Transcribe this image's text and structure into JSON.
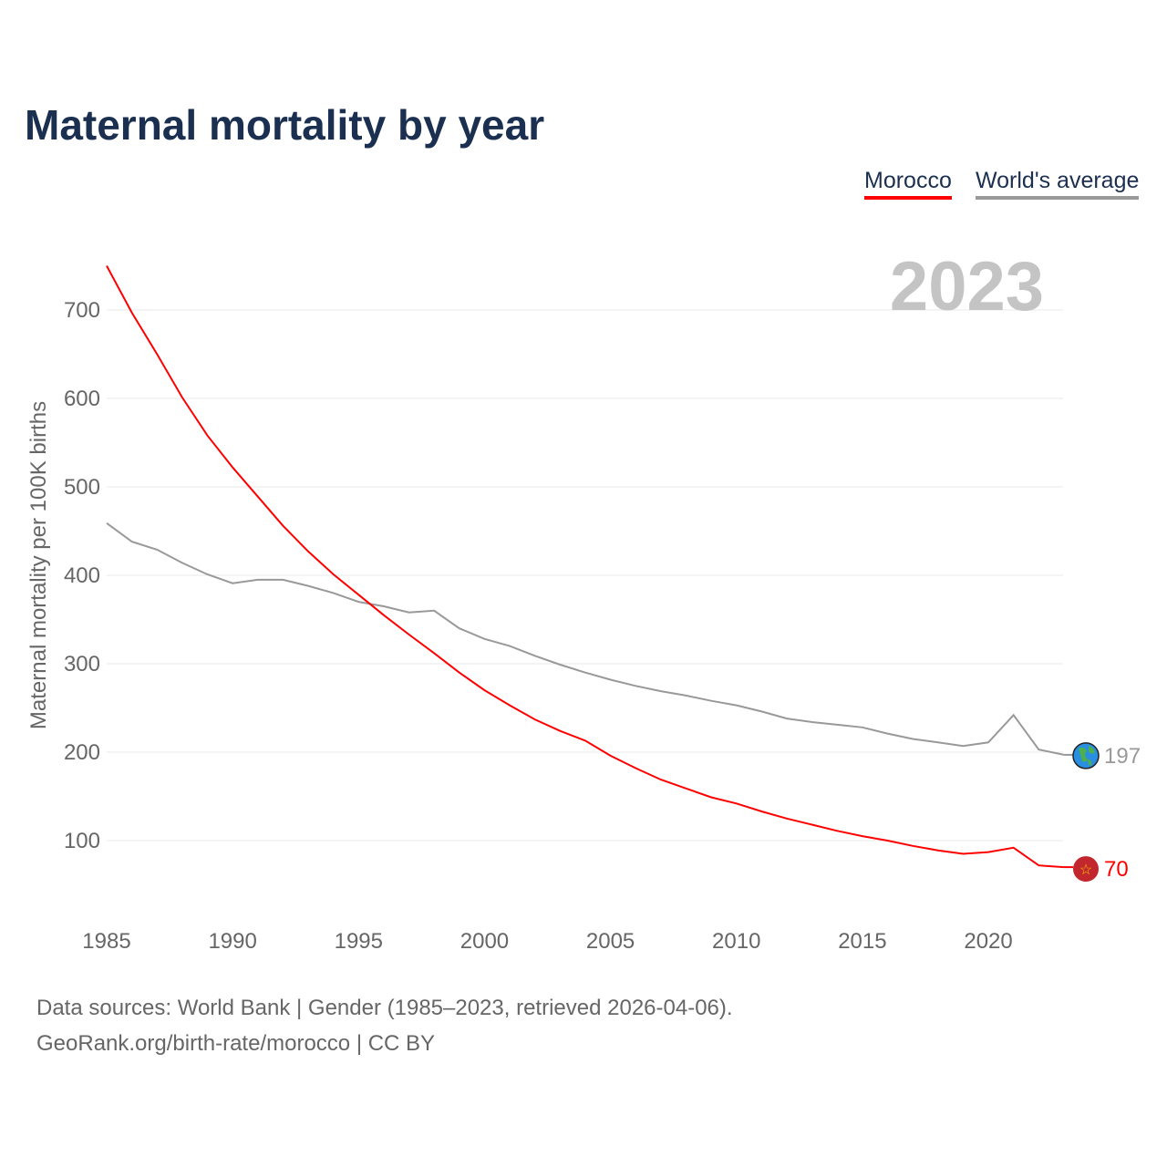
{
  "chart_data": {
    "type": "line",
    "title": "Maternal mortality by year",
    "ylabel": "Maternal mortality per 100K births",
    "xlabel": "",
    "year_label": "2023",
    "xlim": [
      1985,
      2023
    ],
    "ylim": [
      0,
      750
    ],
    "x_ticks": [
      1985,
      1990,
      1995,
      2000,
      2005,
      2010,
      2015,
      2020
    ],
    "y_ticks": [
      100,
      200,
      300,
      400,
      500,
      600,
      700
    ],
    "grid": true,
    "legend_position": "top-right",
    "x": [
      1985,
      1986,
      1987,
      1988,
      1989,
      1990,
      1991,
      1992,
      1993,
      1994,
      1995,
      1996,
      1997,
      1998,
      1999,
      2000,
      2001,
      2002,
      2003,
      2004,
      2005,
      2006,
      2007,
      2008,
      2009,
      2010,
      2011,
      2012,
      2013,
      2014,
      2015,
      2016,
      2017,
      2018,
      2019,
      2020,
      2021,
      2022,
      2023
    ],
    "series": [
      {
        "name": "Morocco",
        "color": "#ff0000",
        "end_label": "70",
        "values": [
          750,
          697,
          650,
          601,
          558,
          522,
          489,
          456,
          427,
          401,
          378,
          355,
          333,
          312,
          290,
          270,
          253,
          237,
          224,
          213,
          196,
          182,
          169,
          159,
          149,
          142,
          133,
          125,
          118,
          111,
          105,
          100,
          94,
          89,
          85,
          87,
          92,
          72,
          70
        ]
      },
      {
        "name": "World's average",
        "color": "#999999",
        "end_label": "197",
        "values": [
          459,
          438,
          429,
          414,
          401,
          391,
          395,
          395,
          388,
          380,
          370,
          365,
          358,
          360,
          340,
          328,
          320,
          309,
          299,
          290,
          282,
          275,
          269,
          264,
          258,
          253,
          246,
          238,
          234,
          231,
          228,
          221,
          215,
          211,
          207,
          211,
          242,
          203,
          197
        ]
      }
    ]
  },
  "footer": {
    "line1": "Data sources: World Bank | Gender (1985–2023, retrieved 2026-04-06).",
    "line2": "GeoRank.org/birth-rate/morocco | CC BY"
  }
}
